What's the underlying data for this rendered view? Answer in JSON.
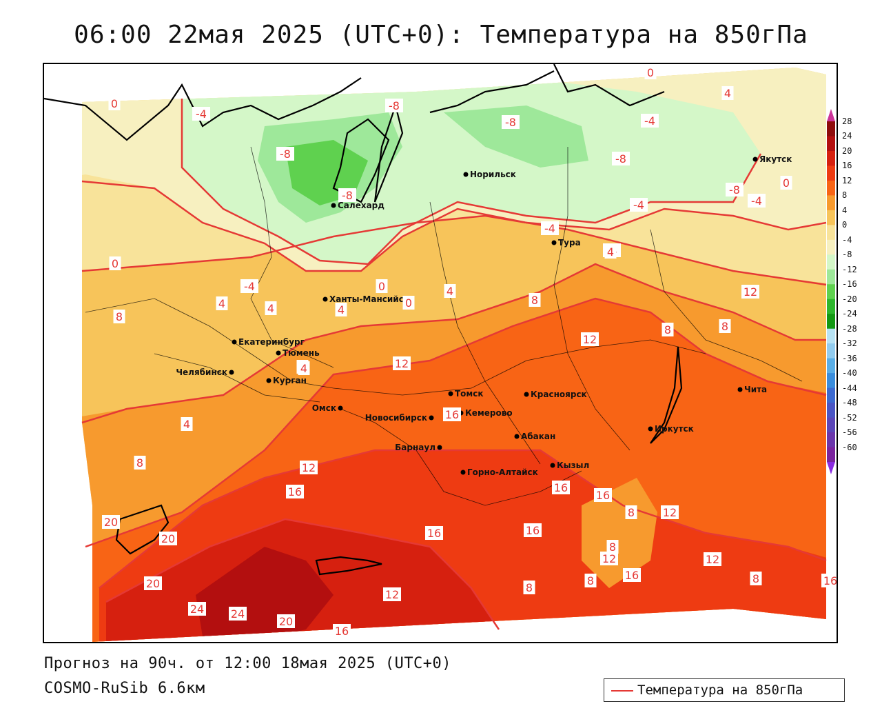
{
  "title": "06:00 22мая 2025 (UTC+0): Температура на 850гПа",
  "forecast_note": "Прогноз на 90ч. от 12:00 18мая 2025 (UTC+0)",
  "model_name": "COSMO-RuSib 6.6км",
  "legend": {
    "label": "Температура на 850гПа",
    "line_color": "#e53935"
  },
  "colorbar": {
    "labels": [
      "28",
      "24",
      "20",
      "16",
      "12",
      "8",
      "4",
      "0",
      "-4",
      "-8",
      "-12",
      "-16",
      "-20",
      "-24",
      "-28",
      "-32",
      "-36",
      "-40",
      "-44",
      "-48",
      "-52",
      "-56",
      "-60"
    ],
    "colors": [
      "#8e0c0c",
      "#b30f0f",
      "#d6200f",
      "#ee3b12",
      "#f86415",
      "#f79a2e",
      "#f7c45a",
      "#f8e39a",
      "#f7f0c0",
      "#d4f7c8",
      "#9ee89a",
      "#5fd14f",
      "#2db62d",
      "#139813",
      "#b8e3f4",
      "#92ccef",
      "#5aaee6",
      "#3a8ddc",
      "#3c6ad0",
      "#4a55c4",
      "#5b46b8",
      "#6a36ab",
      "#7a249e"
    ],
    "top_arrow_color": "#cc3399",
    "bottom_arrow_color": "#8a2be2"
  },
  "cities": [
    {
      "name": "Норильск"
    },
    {
      "name": "Якутск"
    },
    {
      "name": "Салехард"
    },
    {
      "name": "Тура"
    },
    {
      "name": "Ханты-Мансийск"
    },
    {
      "name": "Екатеринбург"
    },
    {
      "name": "Тюмень"
    },
    {
      "name": "Челябинск"
    },
    {
      "name": "Курган"
    },
    {
      "name": "Томск"
    },
    {
      "name": "Красноярск"
    },
    {
      "name": "Чита"
    },
    {
      "name": "Омск"
    },
    {
      "name": "Новосибирск"
    },
    {
      "name": "Кемерово"
    },
    {
      "name": "Иркутск"
    },
    {
      "name": "Абакан"
    },
    {
      "name": "Барнаул"
    },
    {
      "name": "Кызыл"
    },
    {
      "name": "Горно-Алтайск"
    }
  ],
  "isoline_labels": [
    "0",
    "-4",
    "-8",
    "-8",
    "-8",
    "-8",
    "-8",
    "0",
    "4",
    "-4",
    "-4",
    "-8",
    "0",
    "-4",
    "-4",
    "-4",
    "0",
    "4",
    "-4",
    "0",
    "4",
    "0",
    "4",
    "4",
    "4",
    "8",
    "8",
    "12",
    "8",
    "8",
    "4",
    "8",
    "8",
    "12",
    "12",
    "16",
    "4",
    "12",
    "16",
    "16",
    "16",
    "16",
    "16",
    "8",
    "12",
    "12",
    "8",
    "8",
    "16",
    "12",
    "8",
    "16",
    "20",
    "20",
    "20",
    "24",
    "24",
    "20",
    "16",
    "12",
    "8"
  ]
}
